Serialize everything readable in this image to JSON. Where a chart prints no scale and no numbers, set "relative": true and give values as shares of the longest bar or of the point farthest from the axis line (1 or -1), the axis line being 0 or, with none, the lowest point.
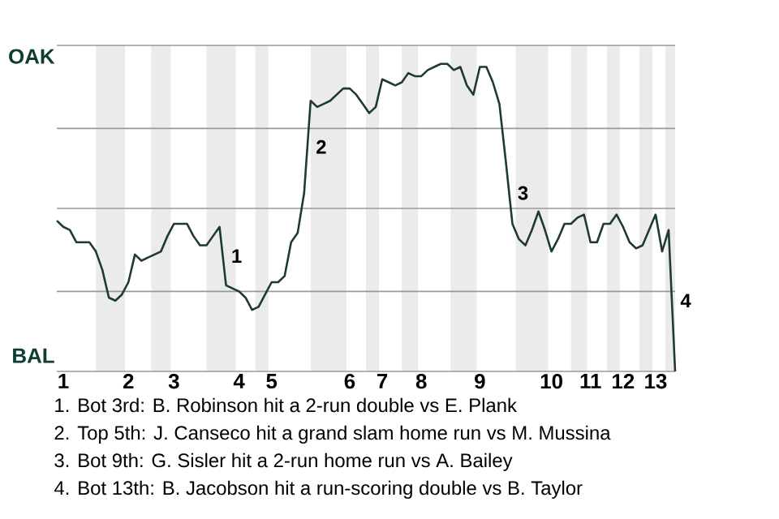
{
  "chart_data": {
    "type": "line",
    "relative": true,
    "categories": [
      null,
      "1",
      null,
      null,
      null,
      null,
      null,
      null,
      null,
      null,
      null,
      "2",
      null,
      null,
      null,
      null,
      null,
      null,
      "3",
      null,
      null,
      null,
      null,
      null,
      null,
      null,
      null,
      null,
      "4",
      null,
      null,
      null,
      null,
      "5",
      null,
      null,
      null,
      null,
      null,
      null,
      null,
      null,
      null,
      null,
      null,
      "6",
      null,
      null,
      null,
      null,
      "7",
      null,
      null,
      null,
      null,
      null,
      "8",
      null,
      null,
      null,
      null,
      null,
      null,
      null,
      null,
      "9",
      null,
      null,
      null,
      null,
      null,
      null,
      null,
      null,
      null,
      null,
      "10",
      null,
      null,
      null,
      null,
      null,
      "11",
      null,
      null,
      null,
      null,
      "12",
      null,
      null,
      null,
      null,
      "13",
      null,
      null,
      null
    ],
    "series": [
      {
        "color": "#1d3b31",
        "values": [
          0.49,
          0.47,
          0.46,
          0.42,
          0.42,
          0.42,
          0.39,
          0.33,
          0.24,
          0.23,
          0.25,
          0.29,
          0.38,
          0.36,
          0.37,
          0.38,
          0.39,
          0.44,
          0.48,
          0.48,
          0.48,
          0.44,
          0.41,
          0.41,
          0.44,
          0.47,
          0.28,
          0.27,
          0.26,
          0.24,
          0.2,
          0.21,
          0.25,
          0.29,
          0.29,
          0.31,
          0.42,
          0.45,
          0.58,
          0.88,
          0.86,
          0.87,
          0.88,
          0.9,
          0.92,
          0.92,
          0.9,
          0.87,
          0.84,
          0.86,
          0.95,
          0.94,
          0.93,
          0.94,
          0.97,
          0.96,
          0.96,
          0.98,
          0.99,
          1,
          1,
          0.98,
          0.99,
          0.93,
          0.9,
          0.99,
          0.99,
          0.94,
          0.87,
          0.68,
          0.48,
          0.43,
          0.41,
          0.46,
          0.52,
          0.46,
          0.39,
          0.43,
          0.48,
          0.48,
          0.5,
          0.51,
          0.42,
          0.42,
          0.48,
          0.48,
          0.51,
          0.47,
          0.42,
          0.4,
          0.41,
          0.46,
          0.51,
          0.39,
          0.46,
          0
        ]
      }
    ],
    "ref_lines": [
      {
        "axis": "y",
        "value": 0,
        "color": "#999999"
      },
      {
        "axis": "y",
        "value": 0.26,
        "color": "#999999"
      },
      {
        "axis": "y",
        "value": 0.53,
        "color": "#999999"
      },
      {
        "axis": "y",
        "value": 0.79,
        "color": "#999999"
      },
      {
        "axis": "y",
        "value": 1.06,
        "color": "#999999"
      }
    ],
    "annotations": [
      "OAK",
      "BAL",
      "1",
      "2",
      "3",
      "4",
      "1. Bot 3rd: B. Robinson hit a 2-run double vs E. Plank",
      "2. Top 5th: J. Canseco hit a grand slam home run vs M. Mussina",
      "3. Bot 9th: G. Sisler hit a 2-run home run vs A. Bailey",
      "4. Bot 13th: B. Jacobson hit a run-scoring double vs B. Taylor"
    ]
  }
}
